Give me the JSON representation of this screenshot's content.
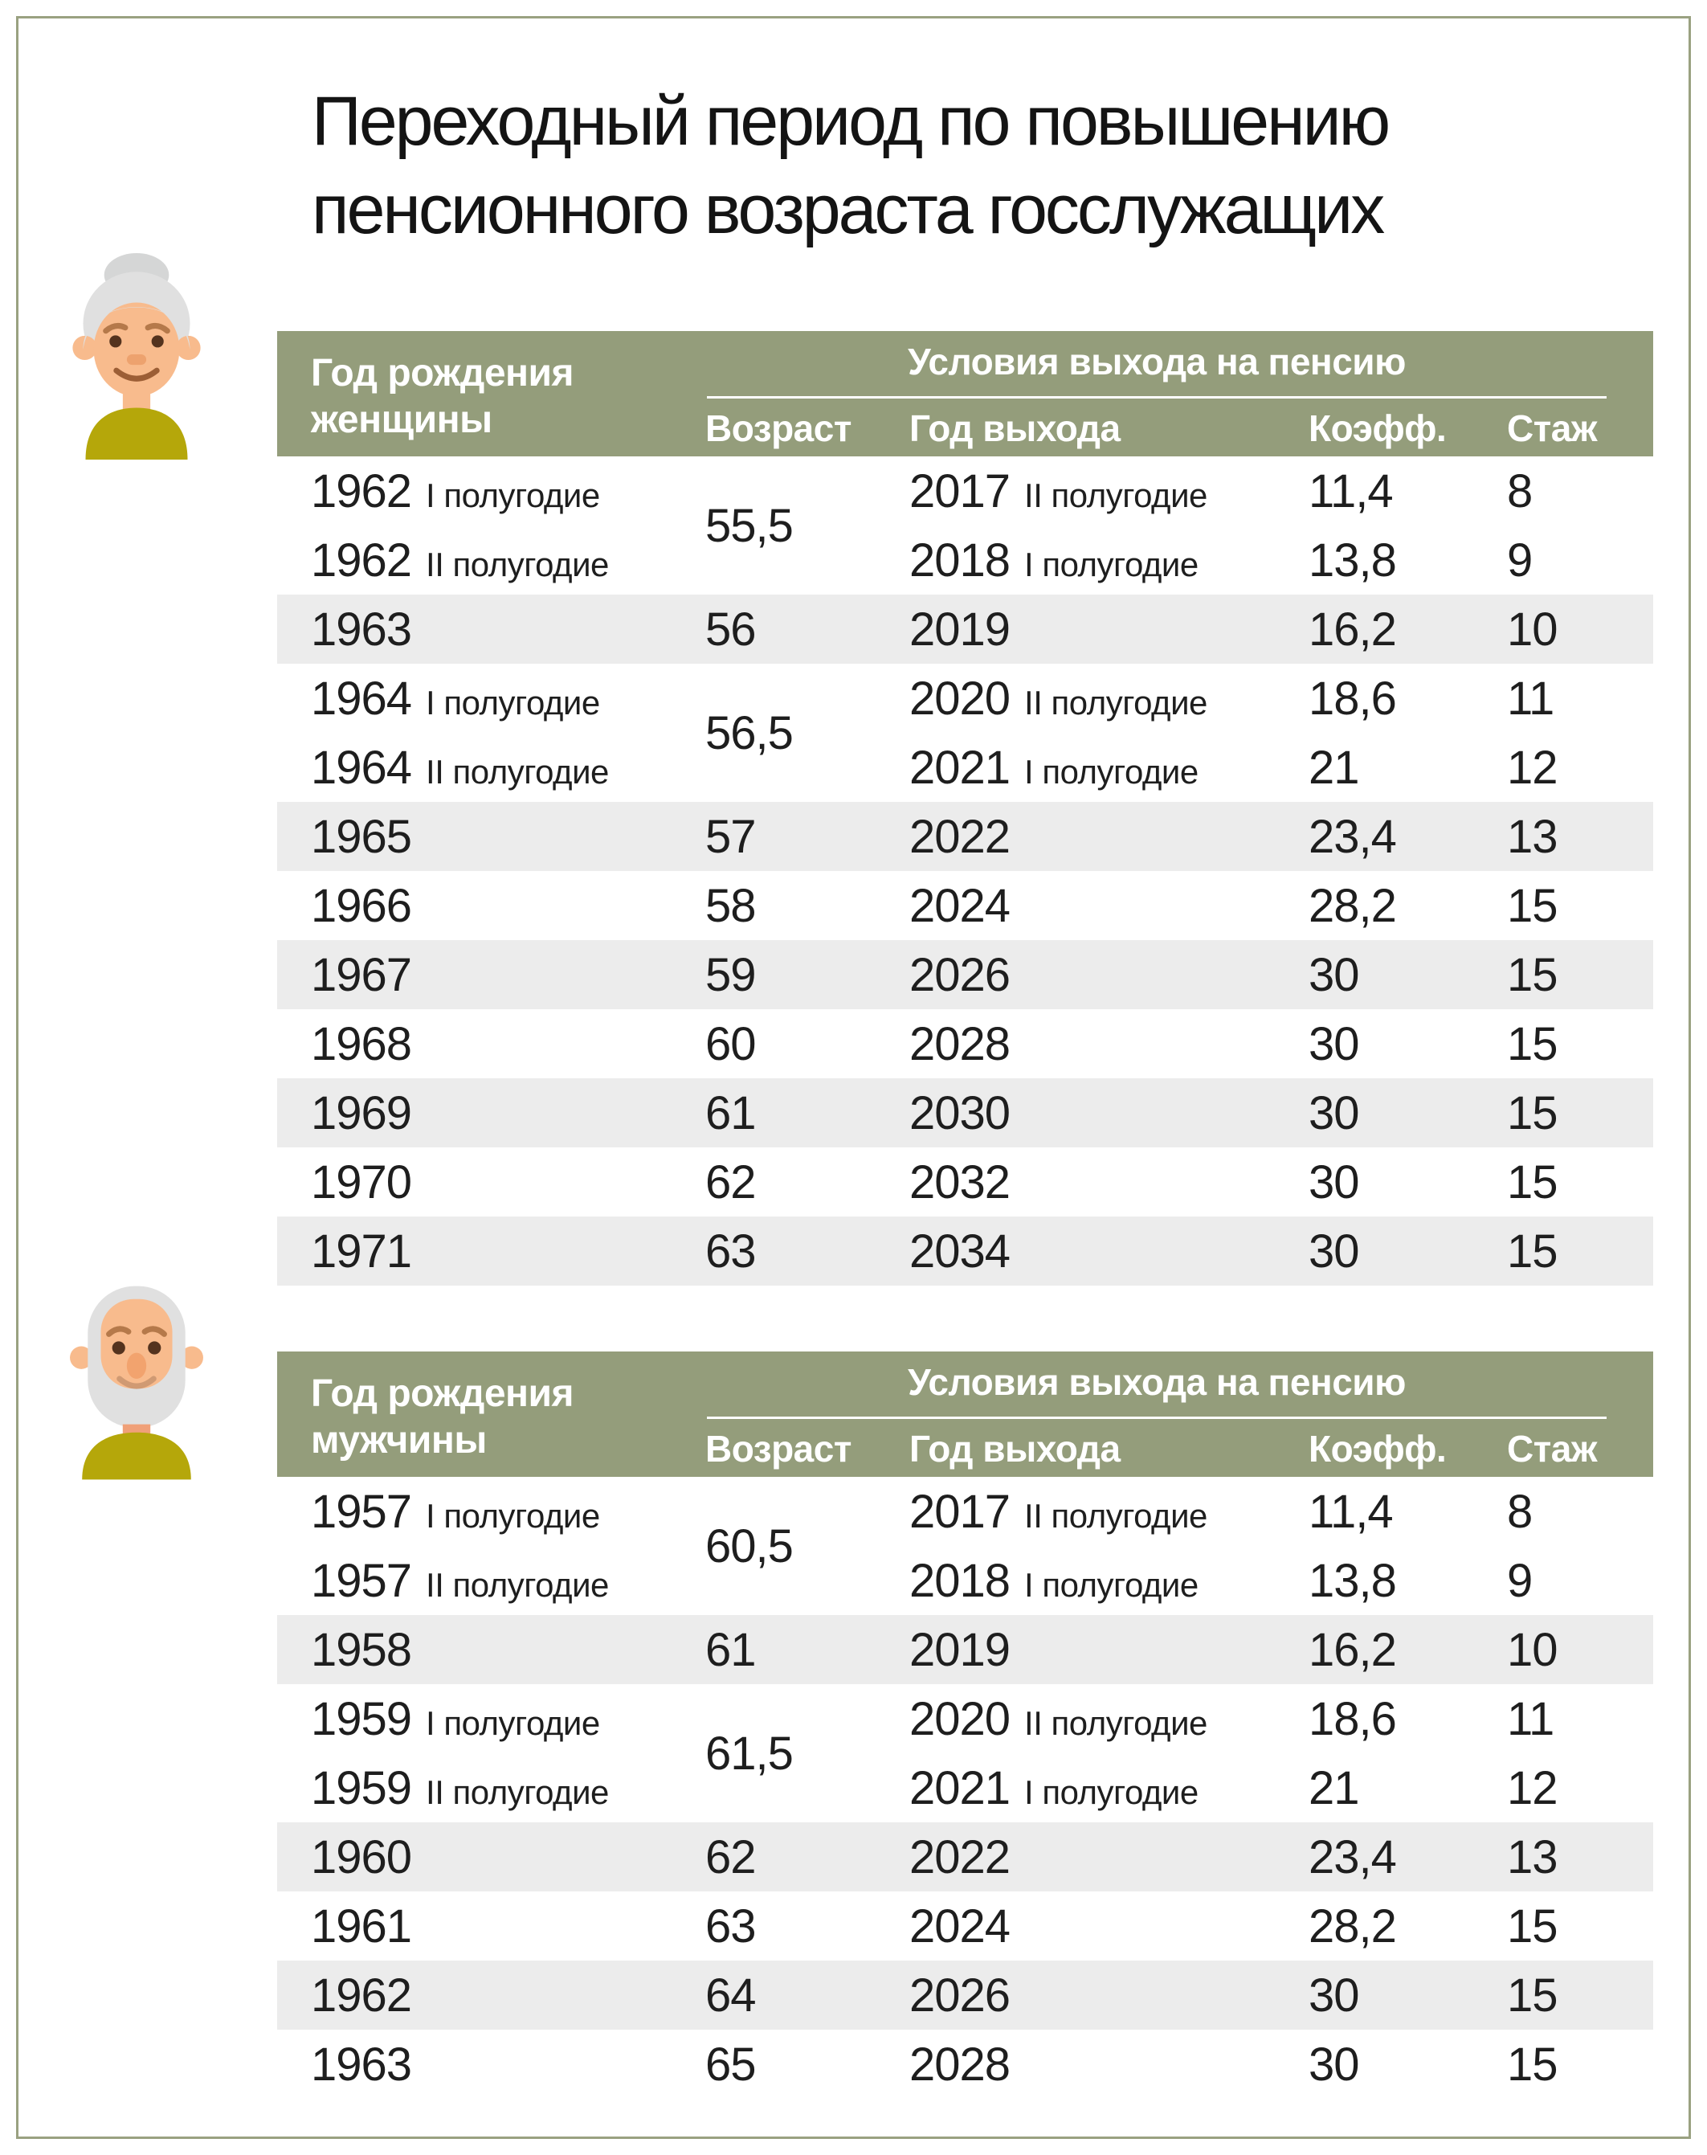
{
  "title": {
    "line1": "Переходный период по повышению",
    "line2": "пенсионного возраста госслужащих"
  },
  "colors": {
    "header_green": "#949d7b",
    "row_shade_gray": "#ececec",
    "page_border_olive": "#9aa181",
    "text_dark": "#1e1e1e",
    "header_text": "#ffffff",
    "avatar_shirt_olive": "#b5a70a",
    "avatar_skin": "#f8bb8d",
    "avatar_hair_gray": "#e0e0e0"
  },
  "avatars": {
    "women": "elderly-woman",
    "men": "elderly-man"
  },
  "chart_data": [
    {
      "type": "table",
      "audience": "women",
      "col1_header_lines": [
        "Год рождения",
        "женщины"
      ],
      "group_header": "Условия выхода на пенсию",
      "columns": [
        "Возраст",
        "Год выхода",
        "Коэфф.",
        "Стаж"
      ],
      "rows": [
        {
          "birth_year": "1962",
          "birth_half": "I полугодие",
          "age": "55,5",
          "age_rowspan": 2,
          "retire_year": "2017",
          "retire_half": "II полугодие",
          "coeff": "11,4",
          "experience": "8",
          "shaded": false
        },
        {
          "birth_year": "1962",
          "birth_half": "II полугодие",
          "retire_year": "2018",
          "retire_half": "I полугодие",
          "coeff": "13,8",
          "experience": "9",
          "shaded": false
        },
        {
          "birth_year": "1963",
          "age": "56",
          "retire_year": "2019",
          "coeff": "16,2",
          "experience": "10",
          "shaded": true
        },
        {
          "birth_year": "1964",
          "birth_half": "I полугодие",
          "age": "56,5",
          "age_rowspan": 2,
          "retire_year": "2020",
          "retire_half": "II полугодие",
          "coeff": "18,6",
          "experience": "11",
          "shaded": false
        },
        {
          "birth_year": "1964",
          "birth_half": "II полугодие",
          "retire_year": "2021",
          "retire_half": "I полугодие",
          "coeff": "21",
          "experience": "12",
          "shaded": false
        },
        {
          "birth_year": "1965",
          "age": "57",
          "retire_year": "2022",
          "coeff": "23,4",
          "experience": "13",
          "shaded": true
        },
        {
          "birth_year": "1966",
          "age": "58",
          "retire_year": "2024",
          "coeff": "28,2",
          "experience": "15",
          "shaded": false
        },
        {
          "birth_year": "1967",
          "age": "59",
          "retire_year": "2026",
          "coeff": "30",
          "experience": "15",
          "shaded": true
        },
        {
          "birth_year": "1968",
          "age": "60",
          "retire_year": "2028",
          "coeff": "30",
          "experience": "15",
          "shaded": false
        },
        {
          "birth_year": "1969",
          "age": "61",
          "retire_year": "2030",
          "coeff": "30",
          "experience": "15",
          "shaded": true
        },
        {
          "birth_year": "1970",
          "age": "62",
          "retire_year": "2032",
          "coeff": "30",
          "experience": "15",
          "shaded": false
        },
        {
          "birth_year": "1971",
          "age": "63",
          "retire_year": "2034",
          "coeff": "30",
          "experience": "15",
          "shaded": true
        }
      ]
    },
    {
      "type": "table",
      "audience": "men",
      "col1_header_lines": [
        "Год рождения",
        "мужчины"
      ],
      "group_header": "Условия выхода на пенсию",
      "columns": [
        "Возраст",
        "Год выхода",
        "Коэфф.",
        "Стаж"
      ],
      "rows": [
        {
          "birth_year": "1957",
          "birth_half": "I полугодие",
          "age": "60,5",
          "age_rowspan": 2,
          "retire_year": "2017",
          "retire_half": "II полугодие",
          "coeff": "11,4",
          "experience": "8",
          "shaded": false
        },
        {
          "birth_year": "1957",
          "birth_half": "II полугодие",
          "retire_year": "2018",
          "retire_half": "I полугодие",
          "coeff": "13,8",
          "experience": "9",
          "shaded": false
        },
        {
          "birth_year": "1958",
          "age": "61",
          "retire_year": "2019",
          "coeff": "16,2",
          "experience": "10",
          "shaded": true
        },
        {
          "birth_year": "1959",
          "birth_half": "I полугодие",
          "age": "61,5",
          "age_rowspan": 2,
          "retire_year": "2020",
          "retire_half": "II полугодие",
          "coeff": "18,6",
          "experience": "11",
          "shaded": false
        },
        {
          "birth_year": "1959",
          "birth_half": "II полугодие",
          "retire_year": "2021",
          "retire_half": "I полугодие",
          "coeff": "21",
          "experience": "12",
          "shaded": false
        },
        {
          "birth_year": "1960",
          "age": "62",
          "retire_year": "2022",
          "coeff": "23,4",
          "experience": "13",
          "shaded": true
        },
        {
          "birth_year": "1961",
          "age": "63",
          "retire_year": "2024",
          "coeff": "28,2",
          "experience": "15",
          "shaded": false
        },
        {
          "birth_year": "1962",
          "age": "64",
          "retire_year": "2026",
          "coeff": "30",
          "experience": "15",
          "shaded": true
        },
        {
          "birth_year": "1963",
          "age": "65",
          "retire_year": "2028",
          "coeff": "30",
          "experience": "15",
          "shaded": false
        }
      ]
    }
  ]
}
